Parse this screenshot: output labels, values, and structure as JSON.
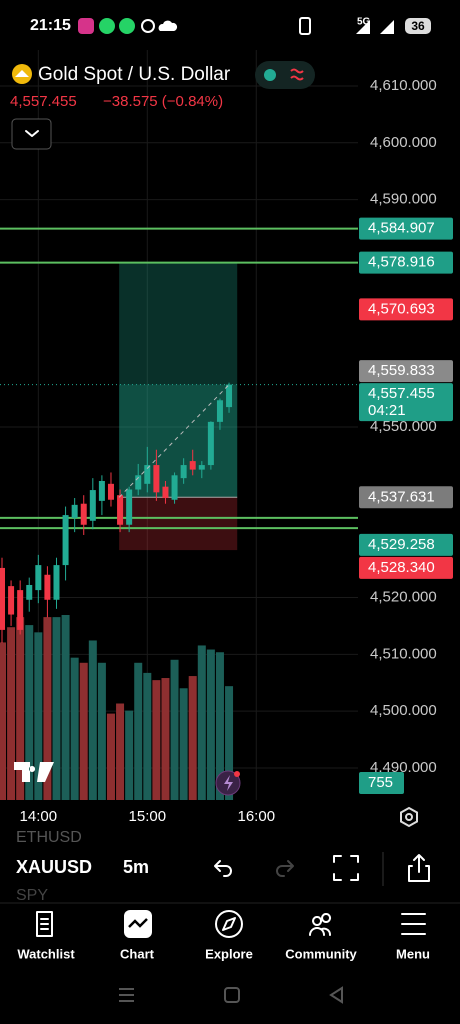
{
  "status_bar": {
    "time": "21:15",
    "network": "5G",
    "battery": "36"
  },
  "header": {
    "title": "Gold Spot / U.S. Dollar",
    "price": "4,557.455",
    "change": "−38.575 (−0.84%)"
  },
  "chart_data": {
    "type": "candlestick",
    "open": [
      4525.2,
      4522.0,
      4521.3,
      4519.6,
      4521.3,
      4524.0,
      4519.6,
      4525.7,
      4534.0,
      4536.5,
      4533.5,
      4537.0,
      4540.0,
      4538.0,
      4532.8,
      4539.0,
      4540.0,
      4543.3,
      4539.5,
      4537.2,
      4541.0,
      4544.0,
      4542.5,
      4543.3,
      4550.9,
      4553.5
    ],
    "high": [
      4527.0,
      4523.0,
      4523.0,
      4523.5,
      4527.5,
      4525.5,
      4527.0,
      4536.0,
      4537.5,
      4538.0,
      4541.0,
      4541.5,
      4542.0,
      4539.0,
      4539.5,
      4543.5,
      4546.5,
      4546.0,
      4540.5,
      4542.0,
      4544.5,
      4546.0,
      4544.0,
      4551.0,
      4555.0,
      4557.8
    ],
    "low": [
      4512.0,
      4515.0,
      4513.5,
      4517.5,
      4519.0,
      4516.5,
      4518.0,
      4523.0,
      4531.5,
      4531.0,
      4532.0,
      4534.5,
      4536.0,
      4531.5,
      4531.5,
      4538.0,
      4538.5,
      4537.0,
      4536.5,
      4536.5,
      4540.0,
      4541.5,
      4541.0,
      4542.5,
      4549.5,
      4552.5
    ],
    "close": [
      4514.3,
      4517.0,
      4514.3,
      4522.2,
      4525.7,
      4519.6,
      4525.7,
      4534.5,
      4536.3,
      4532.8,
      4538.9,
      4540.5,
      4537.2,
      4532.8,
      4539.0,
      4541.5,
      4543.3,
      4538.5,
      4537.5,
      4541.5,
      4543.3,
      4542.5,
      4543.3,
      4550.9,
      4554.7,
      4557.455
    ],
    "volume": [
      1045,
      1146,
      1213,
      1160,
      1112,
      1213,
      1213,
      1227,
      944,
      910,
      1058,
      910,
      573,
      640,
      593,
      910,
      843,
      795,
      809,
      930,
      741,
      822,
      1025,
      998,
      980,
      755
    ],
    "up_color": "#22ab94",
    "down_color": "#f23645",
    "volume_up_color": "#1c5f58",
    "volume_down_color": "#8e2f30",
    "ylim": [
      4484.37,
      4616.33
    ],
    "yticks": [
      {
        "value": 4610,
        "label": "4,610.000"
      },
      {
        "value": 4600,
        "label": "4,600.000"
      },
      {
        "value": 4590,
        "label": "4,590.000"
      },
      {
        "value": 4550,
        "label": "4,550.000"
      },
      {
        "value": 4520,
        "label": "4,520.000"
      },
      {
        "value": 4510,
        "label": "4,510.000"
      },
      {
        "value": 4500,
        "label": "4,500.000"
      },
      {
        "value": 4490,
        "label": "4,490.000"
      }
    ],
    "xlim": [
      -0.22,
      39.2
    ],
    "xticks": [
      {
        "value": 4,
        "label": "14:00"
      },
      {
        "value": 16,
        "label": "15:00"
      },
      {
        "value": 28,
        "label": "16:00"
      }
    ],
    "grid": true,
    "horizontal_lines": [
      4584.907,
      4578.916,
      4534.0,
      4532.2
    ],
    "line_color": "#5cbf60",
    "position": {
      "entry": 4537.631,
      "target": 4578.916,
      "stop": 4528.34,
      "start": 12.9,
      "end": 25.9
    },
    "last_price": 4557.455,
    "countdown": "04:21",
    "price_labels": [
      {
        "value": 4584.907,
        "label": "4,584.907",
        "color": "#1f9e87"
      },
      {
        "value": 4578.916,
        "label": "4,578.916",
        "color": "#1f9e87"
      },
      {
        "value": 4570.693,
        "label": "4,570.693",
        "color": "#f23645"
      },
      {
        "value": 4559.833,
        "label": "4,559.833",
        "color": "#8a8a8a"
      },
      {
        "value": 4557.455,
        "label": "4,557.455",
        "color": "#1f9e87"
      },
      {
        "value": 4537.631,
        "label": "4,537.631",
        "color": "#7c7c7c"
      },
      {
        "value": 4529.258,
        "label": "4,529.258",
        "color": "#1f9e87"
      },
      {
        "value": 4528.34,
        "label": "4,528.340",
        "color": "#f23645"
      }
    ],
    "volume_label": 755
  },
  "toolbar": {
    "symbol": "XAUUSD",
    "interval": "5m",
    "hidden_symbols": [
      "ETHUSD",
      "SPY"
    ]
  },
  "nav": [
    "Watchlist",
    "Chart",
    "Explore",
    "Community",
    "Menu"
  ]
}
